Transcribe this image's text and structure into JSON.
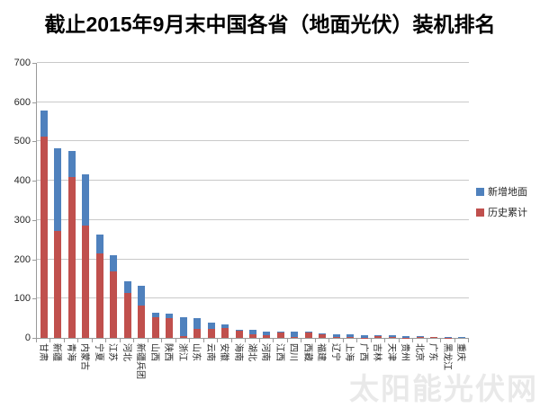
{
  "title": "截止2015年9月末中国各省（地面光伏）装机排名",
  "watermark": "太阳能光伏网",
  "colors": {
    "new_ground": "#4F81BD",
    "historical": "#C0504D",
    "gridline": "#C9C9C9",
    "axis": "#9A9A9A",
    "watermark": "#E9E9E9"
  },
  "y_axis": {
    "min": 0,
    "max": 700,
    "step": 100,
    "ticks": [
      0,
      100,
      200,
      300,
      400,
      500,
      600,
      700
    ]
  },
  "legend": {
    "position": "right",
    "items": [
      {
        "label": "新增地面",
        "color": "#4F81BD"
      },
      {
        "label": "历史累计",
        "color": "#C0504D"
      }
    ]
  },
  "chart_data": {
    "type": "bar",
    "stacked": true,
    "title": "截止2015年9月末中国各省（地面光伏）装机排名",
    "xlabel": "",
    "ylabel": "",
    "ylim": [
      0,
      700
    ],
    "grid": true,
    "legend_position": "right",
    "categories": [
      "甘肃",
      "新疆",
      "青海",
      "内蒙古",
      "宁夏",
      "江苏",
      "河北",
      "新疆兵团",
      "山西",
      "陕西",
      "浙江",
      "山东",
      "云南",
      "安徽",
      "海南",
      "湖北",
      "河南",
      "江西",
      "四川",
      "西藏",
      "福建",
      "辽宁",
      "上海",
      "广西",
      "吉林",
      "天津",
      "贵州",
      "北京",
      "广东",
      "黑龙江",
      "重庆"
    ],
    "series": [
      {
        "name": "历史累计",
        "color": "#C0504D",
        "values": [
          512,
          272,
          410,
          285,
          215,
          170,
          115,
          83,
          52,
          50,
          5,
          22,
          22,
          26,
          18,
          9,
          8,
          16,
          3,
          15,
          10,
          2,
          2,
          1,
          7,
          2,
          1,
          3,
          3,
          1,
          0
        ]
      },
      {
        "name": "新增地面",
        "color": "#4F81BD",
        "values": [
          66,
          210,
          66,
          132,
          47,
          40,
          30,
          50,
          12,
          11,
          47,
          28,
          17,
          9,
          3,
          12,
          9,
          1,
          14,
          1,
          2,
          8,
          7,
          7,
          1,
          5,
          4,
          1,
          0,
          2,
          2
        ]
      }
    ]
  }
}
